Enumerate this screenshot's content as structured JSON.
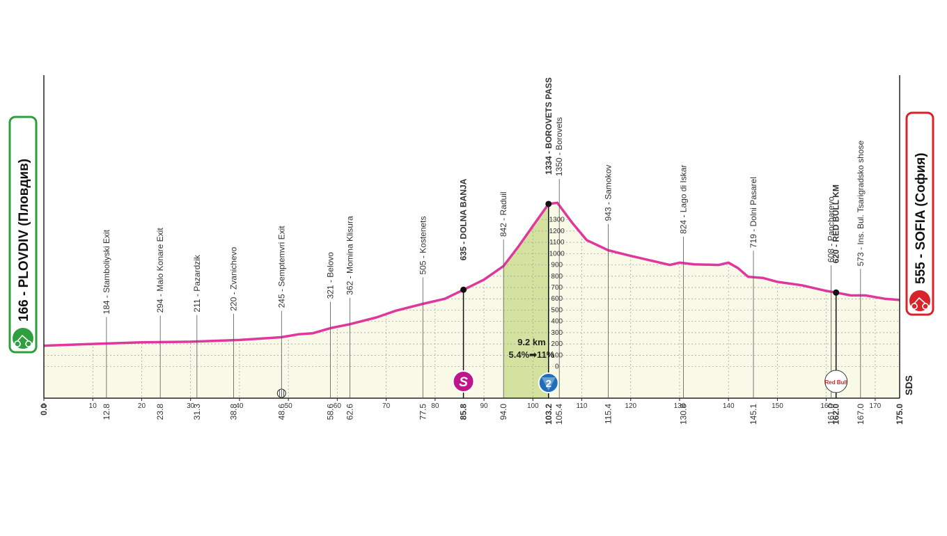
{
  "chart_data": {
    "type": "area",
    "color": "#e0379e",
    "fill": "#f8f9e6",
    "grid": true,
    "start": {
      "label": "166 - PLOVDIV (Пловдив)",
      "km": {
        "value": 0,
        "label": "0.0"
      },
      "color": "#2e9e3e"
    },
    "finish": {
      "label": "555 - SOFIA (София)",
      "km": {
        "value": 175,
        "label": "175.0"
      },
      "color": "#d9232a"
    },
    "logo": "SDS",
    "xlim": [
      0,
      175
    ],
    "ylim": [
      -280,
      2580
    ],
    "xticks": [
      0,
      10,
      20,
      30,
      40,
      50,
      60,
      70,
      80,
      90,
      100,
      110,
      120,
      130,
      140,
      150,
      160,
      170
    ],
    "yticks": [
      0,
      100,
      200,
      300,
      400,
      500,
      600,
      700,
      800,
      900,
      1000,
      1100,
      1200,
      1300
    ],
    "x": [
      0,
      10,
      20,
      30,
      40,
      48.6,
      52,
      55,
      58.6,
      62.6,
      68,
      72,
      77.5,
      82,
      85.8,
      90,
      94,
      97,
      100,
      103.2,
      105,
      108,
      111,
      115.4,
      120,
      125,
      128,
      130,
      133,
      138,
      140,
      142,
      144,
      147,
      150,
      155,
      160,
      162,
      165,
      168,
      172,
      175
    ],
    "values": [
      185,
      200,
      215,
      220,
      235,
      260,
      285,
      295,
      340,
      375,
      435,
      495,
      555,
      600,
      680,
      770,
      890,
      1060,
      1245,
      1440,
      1450,
      1275,
      1120,
      1030,
      980,
      930,
      900,
      920,
      905,
      900,
      920,
      870,
      795,
      785,
      750,
      720,
      670,
      655,
      630,
      630,
      600,
      590
    ],
    "climb": {
      "start": 94,
      "end": 103.2,
      "color": "#d3e29e",
      "length_label": "9.2 km",
      "gradient_label": "5.4%➡11%"
    },
    "waypoints": [
      {
        "km": 12.8,
        "label": "184 - Stamboliyski Exit"
      },
      {
        "km": 23.8,
        "label": "294 - Malo Konare Exit"
      },
      {
        "km": 31.3,
        "label": "211 - Pazardzik"
      },
      {
        "km": 38.8,
        "label": "220 - Zvanichevo"
      },
      {
        "km": 48.6,
        "label": "245 - Semptemvri Exit",
        "icon": "feed"
      },
      {
        "km": 58.6,
        "label": "321 - Belovo"
      },
      {
        "km": 62.6,
        "label": "362 - Momina Klisura"
      },
      {
        "km": 77.5,
        "label": "505 - Kostenets"
      },
      {
        "km": 85.8,
        "label": "635 - DOLNA BANJA",
        "bold": true,
        "icon": "sprint",
        "icon_label": "S"
      },
      {
        "km": {
          "value": 94,
          "label": "94.0"
        },
        "label": "842 - Raduil"
      },
      {
        "km": 103.2,
        "label": "1334 - BOROVETS PASS",
        "bold": true,
        "icon": "kom",
        "icon_label": "2"
      },
      {
        "km": 105.4,
        "label": "1350 - Borovets"
      },
      {
        "km": 115.4,
        "label": "943 - Samokov"
      },
      {
        "km": 130.8,
        "label": "824 - Lago di Iskar"
      },
      {
        "km": 145.1,
        "label": "719 - Dolni Pasarel"
      },
      {
        "km": {
          "value": 161,
          "label": "161.0"
        },
        "label": "608 - Pancharevo"
      },
      {
        "km": {
          "value": 162,
          "label": "162.0"
        },
        "label": "620 - RED BULL KM",
        "bold": true,
        "icon": "redbull",
        "icon_label": "Red Bull"
      },
      {
        "km": {
          "value": 167,
          "label": "167.0"
        },
        "label": "573 - Ins. Bul. Tsarigradsko shose"
      }
    ]
  }
}
